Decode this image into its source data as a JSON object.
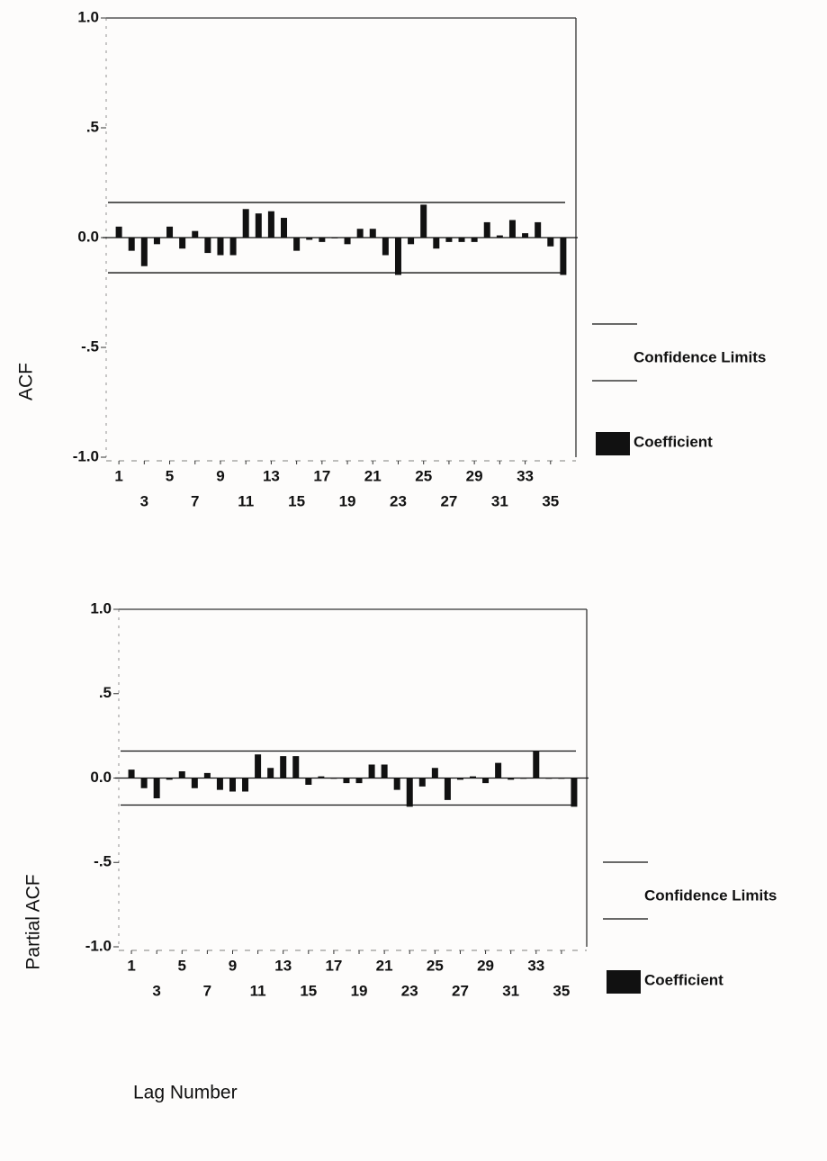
{
  "chart_data": [
    {
      "type": "bar",
      "y_label": "ACF",
      "x": [
        1,
        2,
        3,
        4,
        5,
        6,
        7,
        8,
        9,
        10,
        11,
        12,
        13,
        14,
        15,
        16,
        17,
        18,
        19,
        20,
        21,
        22,
        23,
        24,
        25,
        26,
        27,
        28,
        29,
        30,
        31,
        32,
        33,
        34,
        35,
        36
      ],
      "series": [
        {
          "name": "Coefficient",
          "color": "#111111",
          "values": [
            0.05,
            -0.06,
            -0.13,
            -0.03,
            0.05,
            -0.05,
            0.03,
            -0.07,
            -0.08,
            -0.08,
            0.13,
            0.11,
            0.12,
            0.09,
            -0.06,
            -0.01,
            -0.02,
            0.0,
            -0.03,
            0.04,
            0.04,
            -0.08,
            -0.17,
            -0.03,
            0.15,
            -0.05,
            -0.02,
            -0.02,
            -0.02,
            0.07,
            0.01,
            0.08,
            0.02,
            0.07,
            -0.04,
            -0.17
          ]
        }
      ],
      "confidence_limits": {
        "name": "Confidence Limits",
        "upper": 0.16,
        "lower": -0.16,
        "color": "#111111"
      },
      "xlim": [
        0,
        37
      ],
      "xticks": [
        1,
        3,
        5,
        7,
        9,
        11,
        13,
        15,
        17,
        19,
        21,
        23,
        25,
        27,
        29,
        31,
        33,
        35
      ],
      "ylim": [
        -1,
        1
      ],
      "yticks": [
        {
          "value": -1,
          "label": "-1.0"
        },
        {
          "value": -0.5,
          "label": "-.5"
        },
        {
          "value": 0,
          "label": "0.0"
        },
        {
          "value": 0.5,
          "label": ".5"
        },
        {
          "value": 1,
          "label": "1.0"
        }
      ]
    },
    {
      "type": "bar",
      "y_label": "Partial ACF",
      "x_label": "Lag Number",
      "x": [
        1,
        2,
        3,
        4,
        5,
        6,
        7,
        8,
        9,
        10,
        11,
        12,
        13,
        14,
        15,
        16,
        17,
        18,
        19,
        20,
        21,
        22,
        23,
        24,
        25,
        26,
        27,
        28,
        29,
        30,
        31,
        32,
        33,
        34,
        35,
        36
      ],
      "series": [
        {
          "name": "Coefficient",
          "color": "#111111",
          "values": [
            0.05,
            -0.06,
            -0.12,
            -0.01,
            0.04,
            -0.06,
            0.03,
            -0.07,
            -0.08,
            -0.08,
            0.14,
            0.06,
            0.13,
            0.13,
            -0.04,
            0.01,
            0.0,
            -0.03,
            -0.03,
            0.08,
            0.08,
            -0.07,
            -0.17,
            -0.05,
            0.06,
            -0.13,
            -0.01,
            0.01,
            -0.03,
            0.09,
            -0.01,
            0.0,
            0.16,
            0.0,
            0.0,
            -0.17
          ]
        }
      ],
      "confidence_limits": {
        "name": "Confidence Limits",
        "upper": 0.16,
        "lower": -0.16,
        "color": "#111111"
      },
      "xlim": [
        0,
        37
      ],
      "xticks": [
        1,
        3,
        5,
        7,
        9,
        11,
        13,
        15,
        17,
        19,
        21,
        23,
        25,
        27,
        29,
        31,
        33,
        35
      ],
      "ylim": [
        -1,
        1
      ],
      "yticks": [
        {
          "value": -1,
          "label": "-1.0"
        },
        {
          "value": -0.5,
          "label": "-.5"
        },
        {
          "value": 0,
          "label": "0.0"
        },
        {
          "value": 0.5,
          "label": ".5"
        },
        {
          "value": 1,
          "label": "1.0"
        }
      ]
    }
  ]
}
